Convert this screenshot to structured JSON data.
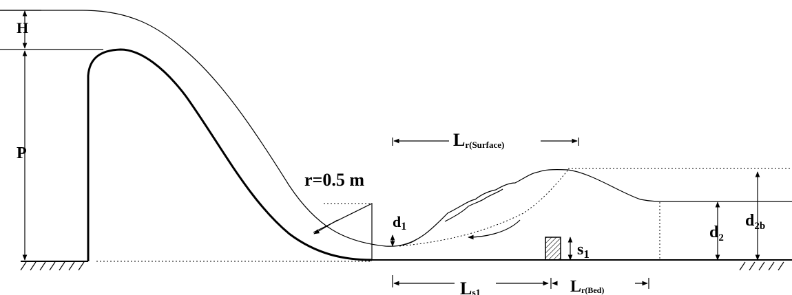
{
  "labels": {
    "H": "H",
    "P": "P",
    "r": "r=0.5 m",
    "d1_main": "d",
    "d1_sub": "1",
    "d2_main": "d",
    "d2_sub": "2",
    "d2b_main": "d",
    "d2b_sub": "2b",
    "s1_main": "s",
    "s1_sub": "1",
    "lr_surface_main": "L",
    "lr_surface_sub": "r(Surface)",
    "ls1_main": "L",
    "ls1_sub": "s1",
    "lr_bed_main": "L",
    "lr_bed_sub": "r(Bed)"
  },
  "colors": {
    "line": "#000000",
    "background": "#ffffff"
  }
}
